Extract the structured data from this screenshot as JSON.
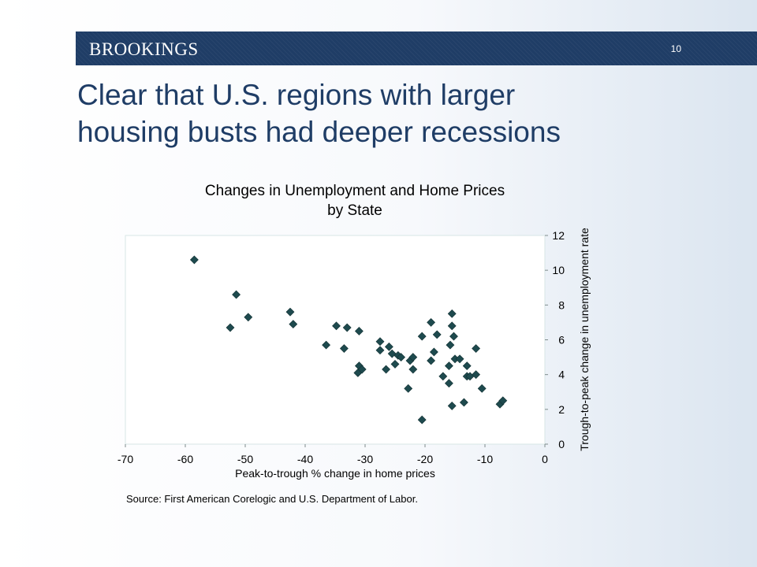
{
  "header": {
    "brand": "BROOKINGS",
    "page_number": "10",
    "band_color": "#1f3d66"
  },
  "slide": {
    "title_line1": "Clear that U.S. regions with larger",
    "title_line2": "housing busts had deeper recessions"
  },
  "chart_data": {
    "type": "scatter",
    "title": "Changes in Unemployment and Home Prices",
    "subtitle": "by State",
    "xlabel": "Peak-to-trough % change in home prices",
    "ylabel": "Trough-to-peak change in unemployment rate",
    "xlim": [
      -70,
      0
    ],
    "ylim": [
      0,
      12
    ],
    "xticks": [
      -70,
      -60,
      -50,
      -40,
      -30,
      -20,
      -10,
      0
    ],
    "yticks": [
      0,
      2,
      4,
      6,
      8,
      10,
      12
    ],
    "y_axis_side": "right",
    "grid": false,
    "marker": "diamond",
    "marker_color": "#1e4a4e",
    "points": [
      {
        "x": -58.5,
        "y": 10.6
      },
      {
        "x": -51.5,
        "y": 8.6
      },
      {
        "x": -52.5,
        "y": 6.7
      },
      {
        "x": -49.5,
        "y": 7.3
      },
      {
        "x": -42.5,
        "y": 7.6
      },
      {
        "x": -42.0,
        "y": 6.9
      },
      {
        "x": -36.5,
        "y": 5.7
      },
      {
        "x": -34.8,
        "y": 6.8
      },
      {
        "x": -33.5,
        "y": 5.5
      },
      {
        "x": -33.0,
        "y": 6.7
      },
      {
        "x": -31.0,
        "y": 6.5
      },
      {
        "x": -31.0,
        "y": 4.5
      },
      {
        "x": -31.2,
        "y": 4.1
      },
      {
        "x": -30.5,
        "y": 4.3
      },
      {
        "x": -27.5,
        "y": 5.9
      },
      {
        "x": -27.5,
        "y": 5.4
      },
      {
        "x": -26.0,
        "y": 5.6
      },
      {
        "x": -25.5,
        "y": 5.2
      },
      {
        "x": -26.5,
        "y": 4.3
      },
      {
        "x": -25.0,
        "y": 4.6
      },
      {
        "x": -24.5,
        "y": 5.1
      },
      {
        "x": -24.0,
        "y": 5.0
      },
      {
        "x": -22.5,
        "y": 4.8
      },
      {
        "x": -22.0,
        "y": 5.0
      },
      {
        "x": -22.0,
        "y": 4.3
      },
      {
        "x": -22.8,
        "y": 3.2
      },
      {
        "x": -20.5,
        "y": 6.2
      },
      {
        "x": -20.5,
        "y": 1.4
      },
      {
        "x": -19.0,
        "y": 7.0
      },
      {
        "x": -19.0,
        "y": 4.8
      },
      {
        "x": -18.5,
        "y": 5.3
      },
      {
        "x": -18.0,
        "y": 6.3
      },
      {
        "x": -17.0,
        "y": 3.9
      },
      {
        "x": -16.0,
        "y": 4.5
      },
      {
        "x": -16.0,
        "y": 3.5
      },
      {
        "x": -15.8,
        "y": 5.7
      },
      {
        "x": -15.5,
        "y": 7.5
      },
      {
        "x": -15.5,
        "y": 6.8
      },
      {
        "x": -15.2,
        "y": 6.2
      },
      {
        "x": -15.0,
        "y": 4.9
      },
      {
        "x": -14.2,
        "y": 4.9
      },
      {
        "x": -15.5,
        "y": 2.2
      },
      {
        "x": -13.5,
        "y": 2.4
      },
      {
        "x": -13.0,
        "y": 4.5
      },
      {
        "x": -13.0,
        "y": 3.9
      },
      {
        "x": -12.5,
        "y": 3.9
      },
      {
        "x": -11.5,
        "y": 5.5
      },
      {
        "x": -11.5,
        "y": 4.0
      },
      {
        "x": -10.5,
        "y": 3.2
      },
      {
        "x": -7.5,
        "y": 2.3
      },
      {
        "x": -7.0,
        "y": 2.5
      }
    ]
  },
  "footer": {
    "source": "Source: First American Corelogic and U.S. Department of Labor."
  }
}
